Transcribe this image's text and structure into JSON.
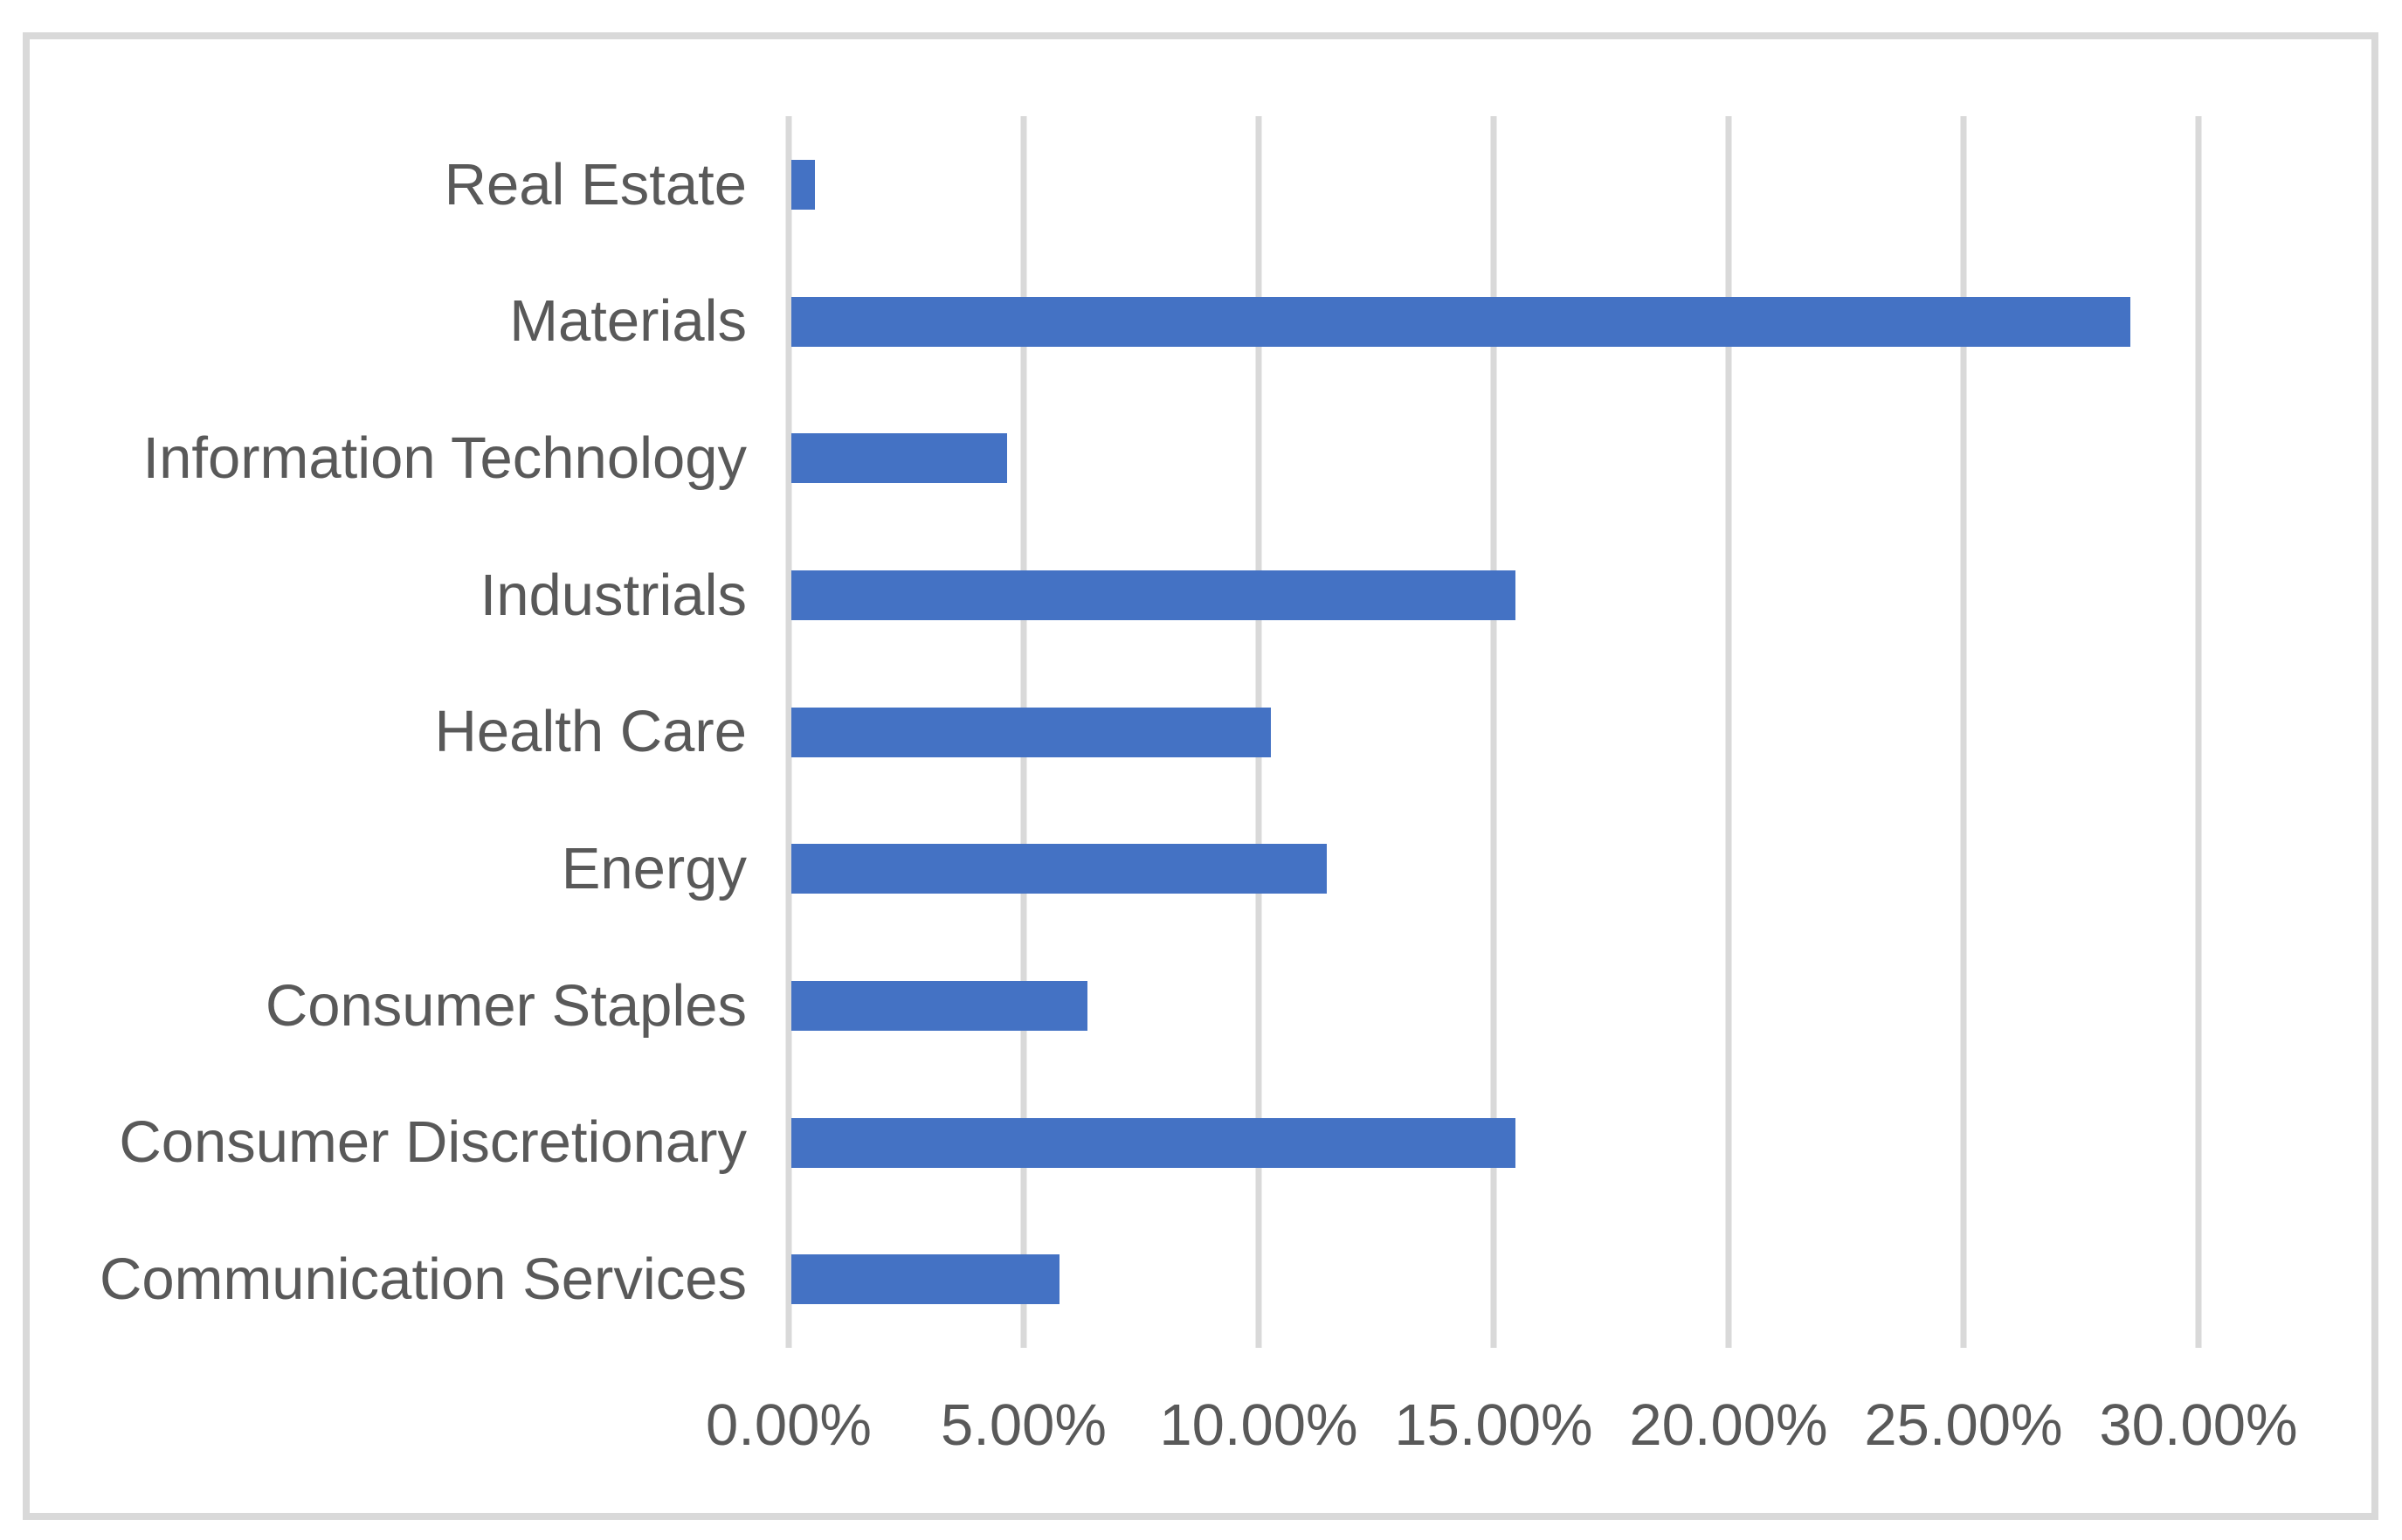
{
  "chart_data": {
    "type": "bar",
    "orientation": "horizontal",
    "title": "",
    "xlabel": "",
    "ylabel": "",
    "categories": [
      "Real Estate",
      "Materials",
      "Information Technology",
      "Industrials",
      "Health Care",
      "Energy",
      "Consumer Staples",
      "Consumer Discretionary",
      "Communication Services"
    ],
    "values": [
      0.5,
      28.5,
      4.6,
      15.4,
      10.2,
      11.4,
      6.3,
      15.4,
      5.7
    ],
    "unit": "%",
    "x_ticks": [
      "0.00%",
      "5.00%",
      "10.00%",
      "15.00%",
      "20.00%",
      "25.00%",
      "30.00%"
    ],
    "x_range": [
      0,
      30
    ],
    "grid": true,
    "legend": false,
    "colors": {
      "bar": "#4472C4",
      "gridline": "#D9D9D9",
      "border": "#D9D9D9",
      "text": "#595959",
      "background": "#FFFFFF"
    }
  }
}
